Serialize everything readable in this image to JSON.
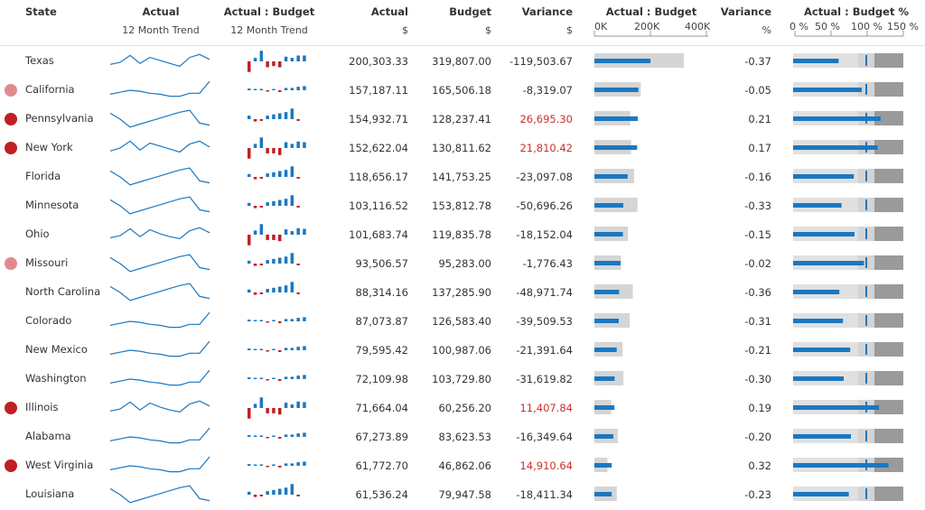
{
  "header": {
    "state": "State",
    "actual": "Actual",
    "actual_sub": "12 Month Trend",
    "ab": "Actual : Budget",
    "ab_sub": "12 Month Trend",
    "actual_num": "Actual",
    "actual_unit": "$",
    "budget": "Budget",
    "budget_unit": "$",
    "variance": "Variance",
    "variance_unit": "$",
    "ab_bar": "Actual : Budget",
    "ab_bar_ticks": [
      "0K",
      "200K",
      "400K"
    ],
    "variance_pct": "Variance",
    "variance_pct_unit": "%",
    "ab_pct": "Actual : Budget %",
    "ab_pct_ticks": [
      "0 %",
      "50 %",
      "100 %",
      "150 %"
    ]
  },
  "colors": {
    "bar_blue": "#1a78c2",
    "budget_grey": "#d5d5d5",
    "red_strong": "#c01f24",
    "red_light": "#e08a90",
    "pos_text": "#c9302c",
    "dark_band": "#9a9a9a",
    "mid_band": "#d4d4d4"
  },
  "rows": [
    {
      "state": "Texas",
      "actual": "200,303.33",
      "budget": "319,807.00",
      "variance": "-119,503.67",
      "pct": "-0.37",
      "a": 200303,
      "b": 319807,
      "ratio": 0.63,
      "dot": "none",
      "trend": [
        0.35,
        0.45,
        0.8,
        0.4,
        0.7,
        0.55,
        0.4,
        0.25,
        0.7,
        0.85,
        0.6
      ],
      "bars": [
        -0.9,
        0.3,
        0.9,
        -0.5,
        -0.4,
        -0.5,
        0.4,
        0.3,
        0.5,
        0.5
      ],
      "pattern": "a"
    },
    {
      "state": "California",
      "actual": "157,187.11",
      "budget": "165,506.18",
      "variance": "-8,319.07",
      "pct": "-0.05",
      "a": 157187,
      "b": 165506,
      "ratio": 0.95,
      "dot": "light",
      "trend": [
        0.3,
        0.4,
        0.5,
        0.45,
        0.35,
        0.3,
        0.2,
        0.2,
        0.35,
        0.35,
        0.95
      ],
      "bars": [
        0.15,
        0.1,
        0.05,
        -0.05,
        0.05,
        -0.15,
        0.2,
        0.2,
        0.3,
        0.35
      ],
      "pattern": "b"
    },
    {
      "state": "Pennsylvania",
      "actual": "154,932.71",
      "budget": "128,237.41",
      "variance": "26,695.30",
      "pct": "0.21",
      "a": 154932,
      "b": 128237,
      "ratio": 1.21,
      "dot": "strong",
      "trend": [
        0.8,
        0.5,
        0.1,
        0.25,
        0.4,
        0.55,
        0.7,
        0.85,
        0.95,
        0.3,
        0.2
      ],
      "bars": [
        0.3,
        -0.2,
        -0.15,
        0.3,
        0.4,
        0.5,
        0.6,
        0.9,
        -0.15
      ],
      "pattern": "c"
    },
    {
      "state": "New York",
      "actual": "152,622.04",
      "budget": "130,811.62",
      "variance": "21,810.42",
      "pct": "0.17",
      "a": 152622,
      "b": 130811,
      "ratio": 1.17,
      "dot": "strong",
      "trend": [
        0.35,
        0.5,
        0.85,
        0.4,
        0.75,
        0.6,
        0.45,
        0.3,
        0.7,
        0.85,
        0.55
      ],
      "bars": [
        -0.9,
        0.35,
        0.9,
        -0.45,
        -0.45,
        -0.6,
        0.5,
        0.35,
        0.55,
        0.5
      ],
      "pattern": "a"
    },
    {
      "state": "Florida",
      "actual": "118,656.17",
      "budget": "141,753.25",
      "variance": "-23,097.08",
      "pct": "-0.16",
      "a": 118656,
      "b": 141753,
      "ratio": 0.84,
      "dot": "none",
      "trend": [
        0.8,
        0.5,
        0.1,
        0.25,
        0.4,
        0.55,
        0.7,
        0.85,
        0.95,
        0.3,
        0.2
      ],
      "bars": [
        0.25,
        -0.2,
        -0.15,
        0.3,
        0.4,
        0.5,
        0.6,
        0.9,
        -0.15
      ],
      "pattern": "c"
    },
    {
      "state": "Minnesota",
      "actual": "103,116.52",
      "budget": "153,812.78",
      "variance": "-50,696.26",
      "pct": "-0.33",
      "a": 103116,
      "b": 153812,
      "ratio": 0.67,
      "dot": "none",
      "trend": [
        0.8,
        0.5,
        0.1,
        0.25,
        0.4,
        0.55,
        0.7,
        0.85,
        0.95,
        0.3,
        0.2
      ],
      "bars": [
        0.25,
        -0.2,
        -0.15,
        0.3,
        0.4,
        0.5,
        0.6,
        0.9,
        -0.15
      ],
      "pattern": "c"
    },
    {
      "state": "Ohio",
      "actual": "101,683.74",
      "budget": "119,835.78",
      "variance": "-18,152.04",
      "pct": "-0.15",
      "a": 101683,
      "b": 119835,
      "ratio": 0.85,
      "dot": "none",
      "trend": [
        0.35,
        0.45,
        0.8,
        0.4,
        0.75,
        0.55,
        0.4,
        0.3,
        0.7,
        0.85,
        0.6
      ],
      "bars": [
        -0.9,
        0.35,
        0.9,
        -0.45,
        -0.45,
        -0.55,
        0.45,
        0.3,
        0.55,
        0.5
      ],
      "pattern": "a"
    },
    {
      "state": "Missouri",
      "actual": "93,506.57",
      "budget": "95,283.00",
      "variance": "-1,776.43",
      "pct": "-0.02",
      "a": 93506,
      "b": 95283,
      "ratio": 0.98,
      "dot": "light",
      "trend": [
        0.8,
        0.5,
        0.1,
        0.25,
        0.4,
        0.55,
        0.7,
        0.85,
        0.95,
        0.3,
        0.2
      ],
      "bars": [
        0.25,
        -0.2,
        -0.15,
        0.3,
        0.4,
        0.5,
        0.6,
        0.9,
        -0.15
      ],
      "pattern": "c"
    },
    {
      "state": "North Carolina",
      "actual": "88,314.16",
      "budget": "137,285.90",
      "variance": "-48,971.74",
      "pct": "-0.36",
      "a": 88314,
      "b": 137285,
      "ratio": 0.64,
      "dot": "none",
      "trend": [
        0.8,
        0.5,
        0.1,
        0.25,
        0.4,
        0.55,
        0.7,
        0.85,
        0.95,
        0.3,
        0.2
      ],
      "bars": [
        0.25,
        -0.2,
        -0.15,
        0.3,
        0.4,
        0.5,
        0.6,
        0.9,
        -0.15
      ],
      "pattern": "c"
    },
    {
      "state": "Colorado",
      "actual": "87,073.87",
      "budget": "126,583.40",
      "variance": "-39,509.53",
      "pct": "-0.31",
      "a": 87073,
      "b": 126583,
      "ratio": 0.69,
      "dot": "none",
      "trend": [
        0.3,
        0.4,
        0.5,
        0.45,
        0.35,
        0.3,
        0.2,
        0.2,
        0.35,
        0.35,
        0.95
      ],
      "bars": [
        0.15,
        0.1,
        0.05,
        -0.05,
        0.05,
        -0.15,
        0.2,
        0.2,
        0.3,
        0.35
      ],
      "pattern": "b"
    },
    {
      "state": "New Mexico",
      "actual": "79,595.42",
      "budget": "100,987.06",
      "variance": "-21,391.64",
      "pct": "-0.21",
      "a": 79595,
      "b": 100987,
      "ratio": 0.79,
      "dot": "none",
      "trend": [
        0.3,
        0.4,
        0.5,
        0.45,
        0.35,
        0.3,
        0.2,
        0.2,
        0.35,
        0.35,
        0.95
      ],
      "bars": [
        0.15,
        0.1,
        0.05,
        -0.05,
        0.05,
        -0.15,
        0.2,
        0.2,
        0.3,
        0.35
      ],
      "pattern": "b"
    },
    {
      "state": "Washington",
      "actual": "72,109.98",
      "budget": "103,729.80",
      "variance": "-31,619.82",
      "pct": "-0.30",
      "a": 72109,
      "b": 103729,
      "ratio": 0.7,
      "dot": "none",
      "trend": [
        0.3,
        0.4,
        0.5,
        0.45,
        0.35,
        0.3,
        0.2,
        0.2,
        0.35,
        0.35,
        0.95
      ],
      "bars": [
        0.15,
        0.1,
        0.05,
        -0.05,
        0.05,
        -0.15,
        0.2,
        0.2,
        0.3,
        0.35
      ],
      "pattern": "b"
    },
    {
      "state": "Illinois",
      "actual": "71,664.04",
      "budget": "60,256.20",
      "variance": "11,407.84",
      "pct": "0.19",
      "a": 71664,
      "b": 60256,
      "ratio": 1.19,
      "dot": "strong",
      "trend": [
        0.35,
        0.45,
        0.8,
        0.4,
        0.75,
        0.55,
        0.4,
        0.3,
        0.7,
        0.85,
        0.6
      ],
      "bars": [
        -0.9,
        0.35,
        0.9,
        -0.45,
        -0.45,
        -0.55,
        0.45,
        0.3,
        0.55,
        0.5
      ],
      "pattern": "a"
    },
    {
      "state": "Alabama",
      "actual": "67,273.89",
      "budget": "83,623.53",
      "variance": "-16,349.64",
      "pct": "-0.20",
      "a": 67273,
      "b": 83623,
      "ratio": 0.8,
      "dot": "none",
      "trend": [
        0.3,
        0.4,
        0.5,
        0.45,
        0.35,
        0.3,
        0.2,
        0.2,
        0.35,
        0.35,
        0.95
      ],
      "bars": [
        0.15,
        0.1,
        0.05,
        -0.05,
        0.05,
        -0.15,
        0.2,
        0.2,
        0.3,
        0.35
      ],
      "pattern": "b"
    },
    {
      "state": "West Virginia",
      "actual": "61,772.70",
      "budget": "46,862.06",
      "variance": "14,910.64",
      "pct": "0.32",
      "a": 61772,
      "b": 46862,
      "ratio": 1.32,
      "dot": "strong",
      "trend": [
        0.3,
        0.4,
        0.5,
        0.45,
        0.35,
        0.3,
        0.2,
        0.2,
        0.35,
        0.35,
        0.95
      ],
      "bars": [
        0.15,
        0.1,
        0.05,
        -0.05,
        0.05,
        -0.15,
        0.2,
        0.2,
        0.3,
        0.35
      ],
      "pattern": "b"
    },
    {
      "state": "Louisiana",
      "actual": "61,536.24",
      "budget": "79,947.58",
      "variance": "-18,411.34",
      "pct": "-0.23",
      "a": 61536,
      "b": 79947,
      "ratio": 0.77,
      "dot": "none",
      "trend": [
        0.8,
        0.5,
        0.1,
        0.25,
        0.4,
        0.55,
        0.7,
        0.85,
        0.95,
        0.3,
        0.2
      ],
      "bars": [
        0.25,
        -0.2,
        -0.15,
        0.3,
        0.4,
        0.5,
        0.6,
        0.9,
        -0.15
      ],
      "pattern": "c"
    }
  ]
}
